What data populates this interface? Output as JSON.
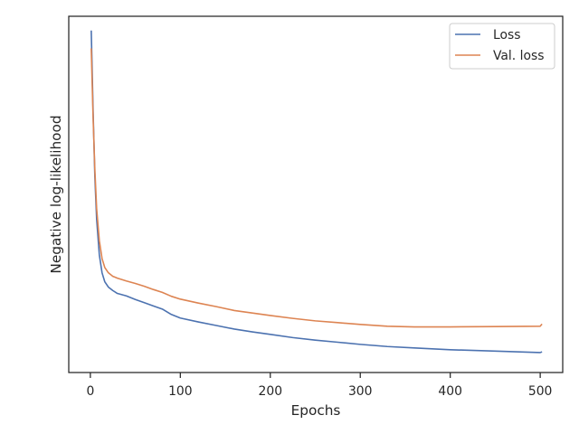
{
  "chart_data": {
    "type": "line",
    "title": "",
    "xlabel": "Epochs",
    "ylabel": "Negative log-likelihood",
    "xlim": [
      -24,
      525
    ],
    "ylim": [
      0,
      1
    ],
    "x_ticks": [
      0,
      100,
      200,
      300,
      400,
      500
    ],
    "y_ticks_shown": false,
    "grid": false,
    "legend_position": "top-right",
    "series": [
      {
        "name": "Loss",
        "color": "#4c72b0",
        "x": [
          1,
          3,
          5,
          7,
          10,
          13,
          16,
          20,
          25,
          30,
          40,
          50,
          60,
          70,
          80,
          90,
          100,
          120,
          140,
          160,
          180,
          200,
          225,
          250,
          275,
          300,
          330,
          360,
          400,
          450,
          500,
          502
        ],
        "values": [
          0.96,
          0.74,
          0.55,
          0.43,
          0.33,
          0.28,
          0.255,
          0.24,
          0.23,
          0.222,
          0.215,
          0.205,
          0.196,
          0.187,
          0.178,
          0.163,
          0.153,
          0.142,
          0.132,
          0.122,
          0.114,
          0.107,
          0.098,
          0.091,
          0.085,
          0.079,
          0.073,
          0.069,
          0.064,
          0.06,
          0.056,
          0.058
        ]
      },
      {
        "name": "Val. loss",
        "color": "#dd8452",
        "x": [
          1,
          3,
          5,
          7,
          10,
          13,
          16,
          20,
          25,
          30,
          40,
          50,
          60,
          70,
          80,
          90,
          100,
          120,
          140,
          160,
          180,
          200,
          225,
          250,
          275,
          300,
          330,
          360,
          400,
          450,
          500,
          502
        ],
        "values": [
          0.91,
          0.72,
          0.57,
          0.46,
          0.37,
          0.32,
          0.295,
          0.28,
          0.27,
          0.265,
          0.257,
          0.25,
          0.242,
          0.233,
          0.225,
          0.214,
          0.206,
          0.195,
          0.185,
          0.174,
          0.167,
          0.16,
          0.152,
          0.145,
          0.14,
          0.135,
          0.13,
          0.128,
          0.128,
          0.129,
          0.13,
          0.136
        ]
      }
    ]
  }
}
